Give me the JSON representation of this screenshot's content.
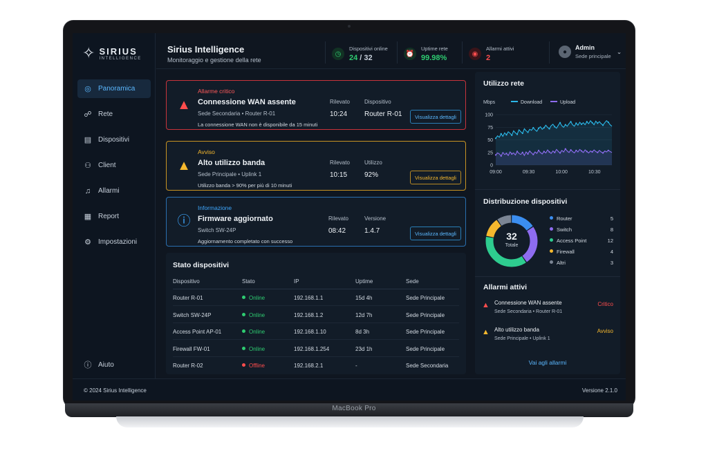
{
  "app": {
    "brand_name": "SIRIUS",
    "brand_sub": "INTELLIGENCE",
    "title": "Sirius Intelligence",
    "subtitle": "Monitoraggio e gestione della rete"
  },
  "sidebar": {
    "items": [
      {
        "label": "Panoramica",
        "icon": "dashboard-icon",
        "active": true
      },
      {
        "label": "Rete",
        "icon": "network-icon"
      },
      {
        "label": "Dispositivi",
        "icon": "devices-icon"
      },
      {
        "label": "Client",
        "icon": "users-icon"
      },
      {
        "label": "Allarmi",
        "icon": "bell-icon"
      },
      {
        "label": "Report",
        "icon": "report-icon"
      },
      {
        "label": "Impostazioni",
        "icon": "gear-icon"
      }
    ],
    "help_label": "Aiuto"
  },
  "header": {
    "stats": [
      {
        "label": "Dispositivi online",
        "value_main": "24",
        "value_rest": " / 32",
        "color": "#2ecc71",
        "icon": "clock-icon"
      },
      {
        "label": "Uptime rete",
        "value_main": "99.98%",
        "value_rest": "",
        "color": "#2ecc71",
        "icon": "alarm-clock-icon"
      },
      {
        "label": "Allarmi attivi",
        "value_main": "2",
        "value_rest": "",
        "color": "#ff4d4d",
        "icon": "alert-circle-icon"
      }
    ],
    "user": {
      "name": "Admin",
      "site": "Sede principale"
    }
  },
  "alerts": [
    {
      "kind": "Allarme critico",
      "title": "Connessione WAN assente",
      "meta": "Sede Secondaria  •  Router R-01",
      "desc": "La connessione WAN non è disponibile da 15 minuti",
      "col1_label": "Rilevato",
      "col1_value": "10:24",
      "col2_label": "Dispositivo",
      "col2_value": "Router R-01",
      "button": "Visualizza dettagli",
      "color": "#ff4d4d"
    },
    {
      "kind": "Avviso",
      "title": "Alto utilizzo banda",
      "meta": "Sede Principale  •  Uplink 1",
      "desc": "Utilizzo banda > 90% per più di 10 minuti",
      "col1_label": "Rilevato",
      "col1_value": "10:15",
      "col2_label": "Utilizzo",
      "col2_value": "92%",
      "button": "Visualizza dettagli",
      "color": "#f5b82e"
    },
    {
      "kind": "Informazione",
      "title": "Firmware aggiornato",
      "meta": "Switch SW-24P",
      "desc": "Aggiornamento completato con successo",
      "col1_label": "Rilevato",
      "col1_value": "08:42",
      "col2_label": "Versione",
      "col2_value": "1.4.7",
      "button": "Visualizza dettagli",
      "color": "#3ea8ff"
    }
  ],
  "devices": {
    "title": "Stato dispositivi",
    "columns": [
      "Dispositivo",
      "Stato",
      "IP",
      "Uptime",
      "Sede"
    ],
    "rows": [
      [
        "Router R-01",
        "Online",
        "192.168.1.1",
        "15d 4h",
        "Sede Principale"
      ],
      [
        "Switch SW-24P",
        "Online",
        "192.168.1.2",
        "12d 7h",
        "Sede Principale"
      ],
      [
        "Access Point AP-01",
        "Online",
        "192.168.1.10",
        "8d 3h",
        "Sede Principale"
      ],
      [
        "Firewall FW-01",
        "Online",
        "192.168.1.254",
        "23d 1h",
        "Sede Principale"
      ],
      [
        "Router R-02",
        "Offline",
        "192.168.2.1",
        "-",
        "Sede Secondaria"
      ]
    ]
  },
  "network_usage": {
    "title": "Utilizzo rete",
    "unit": "Mbps",
    "legend": [
      "Download",
      "Upload"
    ],
    "y_ticks": [
      "100",
      "75",
      "50",
      "25",
      "0"
    ],
    "x_ticks": [
      "09:00",
      "09:30",
      "10:00",
      "10:30"
    ],
    "ylim": [
      0,
      100
    ],
    "download": [
      53,
      58,
      55,
      62,
      57,
      64,
      60,
      66,
      63,
      59,
      68,
      64,
      61,
      70,
      66,
      63,
      72,
      68,
      65,
      71,
      69,
      74,
      70,
      67,
      73,
      76,
      71,
      74,
      79,
      75,
      72,
      78,
      81,
      76,
      73,
      79,
      84,
      78,
      75,
      80,
      77,
      82,
      86,
      80,
      77,
      83,
      79,
      85,
      81,
      84,
      80,
      86,
      82,
      88,
      84,
      80,
      87,
      83,
      86,
      82,
      79,
      84,
      88,
      85,
      80,
      77
    ],
    "upload": [
      20,
      24,
      22,
      18,
      25,
      21,
      23,
      19,
      26,
      22,
      24,
      20,
      27,
      23,
      21,
      25,
      19,
      26,
      22,
      28,
      24,
      21,
      26,
      23,
      29,
      25,
      22,
      27,
      24,
      30,
      26,
      23,
      28,
      25,
      31,
      27,
      24,
      29,
      26,
      32,
      28,
      25,
      30,
      27,
      24,
      29,
      26,
      31,
      28,
      25,
      30,
      27,
      24,
      28,
      26,
      30,
      27,
      25,
      29,
      26,
      24,
      28,
      26,
      29,
      27,
      25
    ],
    "colors": {
      "download": "#2bb8e8",
      "upload": "#8e6cf0"
    }
  },
  "distribution": {
    "title": "Distribuzione dispositivi",
    "total": "32",
    "total_label": "Totale",
    "items": [
      {
        "label": "Router",
        "value": 5,
        "color": "#3b8ef0"
      },
      {
        "label": "Switch",
        "value": 8,
        "color": "#8e6cf0"
      },
      {
        "label": "Access Point",
        "value": 12,
        "color": "#2ecc8f"
      },
      {
        "label": "Firewall",
        "value": 4,
        "color": "#f5b82e"
      },
      {
        "label": "Altri",
        "value": 3,
        "color": "#7b8594"
      }
    ]
  },
  "active_alarms": {
    "title": "Allarmi attivi",
    "items": [
      {
        "title": "Connessione WAN assente",
        "meta": "Sede Secondaria  •  Router R-01",
        "severity": "Critico",
        "color": "#ff4d4d"
      },
      {
        "title": "Alto utilizzo banda",
        "meta": "Sede Principale  •  Uplink 1",
        "severity": "Avviso",
        "color": "#f5b82e"
      }
    ],
    "link": "Vai agli allarmi"
  },
  "footer": {
    "copyright": "© 2024 Sirius Intelligence",
    "version": "Versione 2.1.0"
  },
  "device_label": "MacBook Pro"
}
